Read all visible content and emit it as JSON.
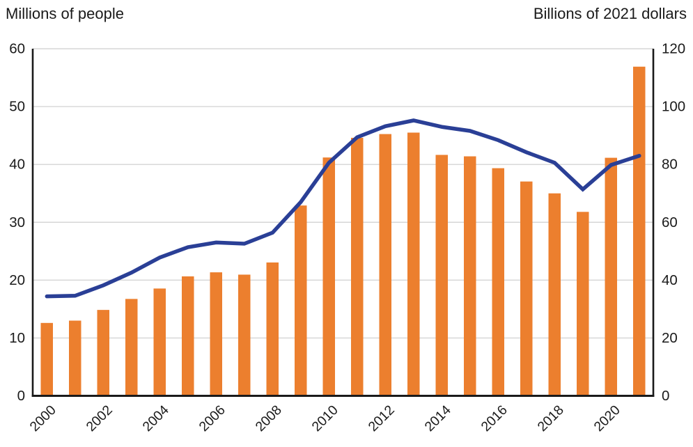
{
  "colors": {
    "background": "#FFFFFF",
    "bar": "#EC7F2E",
    "line": "#2A3F96",
    "grid": "#D5D5D5",
    "axis": "#1A1A1A",
    "text": "#1A1A1A"
  },
  "chart_data": {
    "type": "combo",
    "grid": "horizontal",
    "legend": "none",
    "categories": [
      "2000",
      "2001",
      "2002",
      "2003",
      "2004",
      "2005",
      "2006",
      "2007",
      "2008",
      "2009",
      "2010",
      "2011",
      "2012",
      "2013",
      "2014",
      "2015",
      "2016",
      "2017",
      "2018",
      "2019",
      "2020",
      "2021"
    ],
    "x_tick_labels_shown": [
      "2000",
      "2002",
      "2004",
      "2006",
      "2008",
      "2010",
      "2012",
      "2014",
      "2016",
      "2018",
      "2020"
    ],
    "left_axis": {
      "title": "Millions of people",
      "min": 0,
      "max": 60,
      "ticks": [
        0,
        10,
        20,
        30,
        40,
        50,
        60
      ]
    },
    "right_axis": {
      "title": "Billions of 2021 dollars",
      "min": 0,
      "max": 120,
      "ticks": [
        0,
        20,
        40,
        60,
        80,
        100,
        120
      ]
    },
    "series": [
      {
        "name": "bars-right-axis",
        "type": "bar",
        "axis": "right",
        "unit": "billions of 2021 dollars",
        "color": "#EC7F2E",
        "values": [
          25.2,
          26.0,
          29.7,
          33.5,
          37.1,
          41.3,
          42.7,
          41.9,
          46.1,
          65.8,
          82.4,
          89.2,
          90.5,
          91.0,
          83.3,
          82.8,
          78.7,
          74.1,
          70.0,
          63.6,
          82.3,
          113.8
        ]
      },
      {
        "name": "line-left-axis",
        "type": "line",
        "axis": "left",
        "unit": "millions of people",
        "color": "#2A3F96",
        "values": [
          17.2,
          17.3,
          19.1,
          21.3,
          23.9,
          25.7,
          26.5,
          26.3,
          28.2,
          33.5,
          40.3,
          44.7,
          46.6,
          47.6,
          46.5,
          45.8,
          44.2,
          42.1,
          40.3,
          35.7,
          39.9,
          41.5
        ]
      }
    ]
  }
}
